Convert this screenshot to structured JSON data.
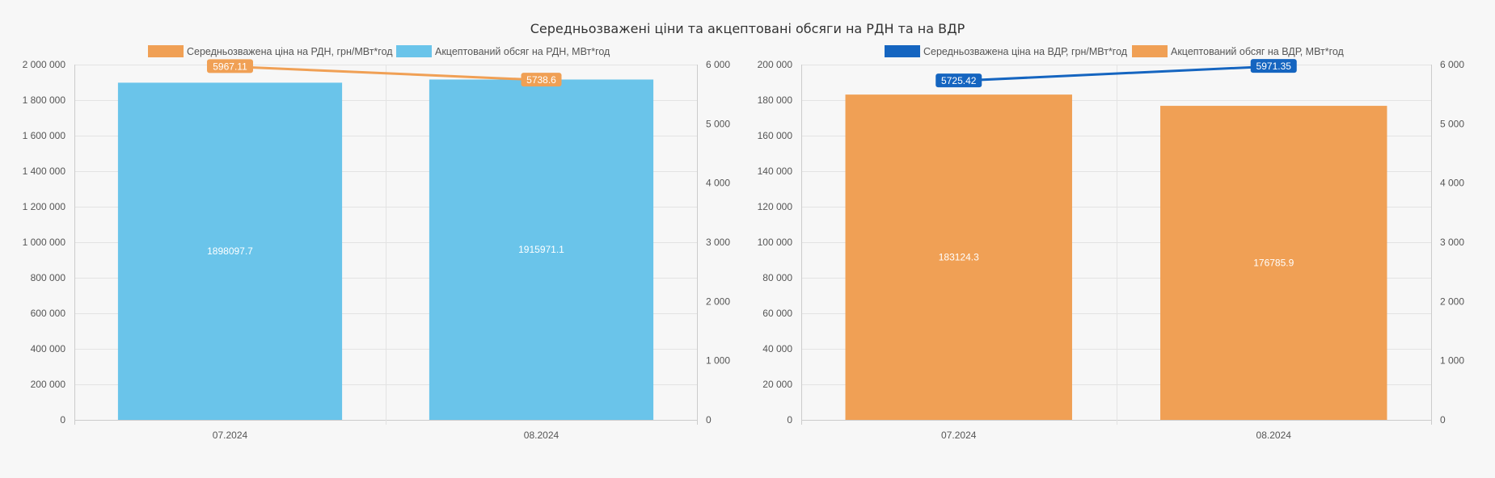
{
  "title": "Середньозважені ціни та акцептовані обсяги на РДН та на ВДР",
  "chart_data": [
    {
      "type": "bar",
      "categories": [
        "07.2024",
        "08.2024"
      ],
      "ylim": [
        0,
        2000000
      ],
      "y_ticks": [
        "0",
        "200 000",
        "400 000",
        "600 000",
        "800 000",
        "1 000 000",
        "1 200 000",
        "1 400 000",
        "1 600 000",
        "1 800 000",
        "2 000 000"
      ],
      "y2lim": [
        0,
        6000
      ],
      "y2_ticks": [
        "0",
        "1 000",
        "2 000",
        "3 000",
        "4 000",
        "5 000",
        "6 000"
      ],
      "grid": true,
      "legend_position": "top",
      "series": [
        {
          "name": "Середньозважена ціна на РДН, грн/МВт*год",
          "type": "line",
          "axis": "right",
          "color": "#f0a055",
          "values": [
            5967.11,
            5738.6
          ],
          "labels": [
            "5967.11",
            "5738.6"
          ]
        },
        {
          "name": "Акцептований обсяг на РДН, МВт*год",
          "type": "bar",
          "axis": "left",
          "color": "#6ac4ea",
          "values": [
            1898097.7,
            1915971.1
          ],
          "labels": [
            "1898097.7",
            "1915971.1"
          ]
        }
      ]
    },
    {
      "type": "bar",
      "categories": [
        "07.2024",
        "08.2024"
      ],
      "ylim": [
        0,
        200000
      ],
      "y_ticks": [
        "0",
        "20 000",
        "40 000",
        "60 000",
        "80 000",
        "100 000",
        "120 000",
        "140 000",
        "160 000",
        "180 000",
        "200 000"
      ],
      "y2lim": [
        0,
        6000
      ],
      "y2_ticks": [
        "0",
        "1 000",
        "2 000",
        "3 000",
        "4 000",
        "5 000",
        "6 000"
      ],
      "grid": true,
      "legend_position": "top",
      "series": [
        {
          "name": "Середньозважена ціна на ВДР, грн/МВт*год",
          "type": "line",
          "axis": "right",
          "color": "#1565c0",
          "values": [
            5725.42,
            5971.35
          ],
          "labels": [
            "5725.42",
            "5971.35"
          ]
        },
        {
          "name": "Акцептований обсяг на ВДР, МВт*год",
          "type": "bar",
          "axis": "left",
          "color": "#f0a055",
          "values": [
            183124.3,
            176785.9
          ],
          "labels": [
            "183124.3",
            "176785.9"
          ]
        }
      ]
    }
  ]
}
